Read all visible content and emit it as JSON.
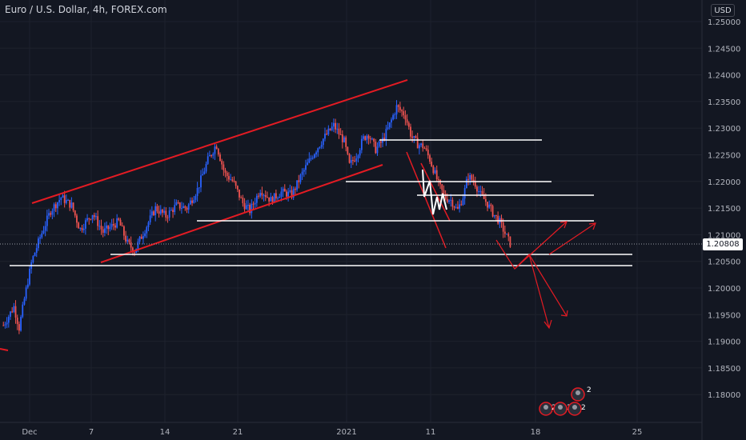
{
  "header": {
    "title": "Euro / U.S. Dollar, 4h, FOREX.com",
    "currency": "USD"
  },
  "last_price": "1.20808",
  "idea_icons": {
    "top_count": "2",
    "counts": [
      "2",
      "3",
      "2"
    ]
  },
  "chart_data": {
    "type": "candlestick",
    "title": "Euro / U.S. Dollar, 4h, FOREX.com",
    "y_ticks": [
      "1.25000",
      "1.24500",
      "1.24000",
      "1.23500",
      "1.23000",
      "1.22500",
      "1.22000",
      "1.21500",
      "1.21000",
      "1.20500",
      "1.20000",
      "1.19500",
      "1.19000",
      "1.18500",
      "1.18000"
    ],
    "y_tick_values": [
      1.25,
      1.245,
      1.24,
      1.235,
      1.23,
      1.225,
      1.22,
      1.215,
      1.21,
      1.205,
      1.2,
      1.195,
      1.19,
      1.185,
      1.18
    ],
    "x_ticks": [
      "Dec",
      "7",
      "14",
      "21",
      "2021",
      "11",
      "18",
      "25"
    ],
    "last_price": 1.20808,
    "colors": {
      "up": "#2962ff",
      "down": "#ef5350",
      "drawing": "#e31b23",
      "levels": "#ffffff",
      "background": "#131722"
    },
    "price_path": [
      {
        "d": -2.5,
        "p": 1.193
      },
      {
        "d": -1.5,
        "p": 1.1965
      },
      {
        "d": -1.0,
        "p": 1.1925
      },
      {
        "d": -0.4,
        "p": 1.199
      },
      {
        "d": 0.2,
        "p": 1.205
      },
      {
        "d": 1.0,
        "p": 1.2095
      },
      {
        "d": 2.0,
        "p": 1.2145
      },
      {
        "d": 3.0,
        "p": 1.217
      },
      {
        "d": 4.0,
        "p": 1.2155
      },
      {
        "d": 4.8,
        "p": 1.211
      },
      {
        "d": 6.0,
        "p": 1.214
      },
      {
        "d": 7.0,
        "p": 1.2105
      },
      {
        "d": 8.5,
        "p": 1.2125
      },
      {
        "d": 9.3,
        "p": 1.2085
      },
      {
        "d": 10.0,
        "p": 1.207
      },
      {
        "d": 11.0,
        "p": 1.211
      },
      {
        "d": 12.0,
        "p": 1.215
      },
      {
        "d": 13.0,
        "p": 1.2135
      },
      {
        "d": 14.0,
        "p": 1.2155
      },
      {
        "d": 15.0,
        "p": 1.215
      },
      {
        "d": 16.0,
        "p": 1.2185
      },
      {
        "d": 17.0,
        "p": 1.224
      },
      {
        "d": 17.8,
        "p": 1.227
      },
      {
        "d": 18.6,
        "p": 1.2215
      },
      {
        "d": 19.4,
        "p": 1.22
      },
      {
        "d": 20.3,
        "p": 1.216
      },
      {
        "d": 21.0,
        "p": 1.2145
      },
      {
        "d": 22.0,
        "p": 1.2185
      },
      {
        "d": 23.0,
        "p": 1.2165
      },
      {
        "d": 24.0,
        "p": 1.218
      },
      {
        "d": 25.0,
        "p": 1.2175
      },
      {
        "d": 26.0,
        "p": 1.2215
      },
      {
        "d": 27.0,
        "p": 1.225
      },
      {
        "d": 28.0,
        "p": 1.228
      },
      {
        "d": 29.0,
        "p": 1.2305
      },
      {
        "d": 30.0,
        "p": 1.2275
      },
      {
        "d": 30.5,
        "p": 1.223
      },
      {
        "d": 31.2,
        "p": 1.225
      },
      {
        "d": 31.8,
        "p": 1.228
      },
      {
        "d": 32.3,
        "p": 1.229
      },
      {
        "d": 33.0,
        "p": 1.226
      },
      {
        "d": 33.6,
        "p": 1.2275
      },
      {
        "d": 34.2,
        "p": 1.23
      },
      {
        "d": 35.0,
        "p": 1.234
      },
      {
        "d": 35.8,
        "p": 1.2325
      },
      {
        "d": 36.4,
        "p": 1.2285
      },
      {
        "d": 37.0,
        "p": 1.227
      },
      {
        "d": 37.6,
        "p": 1.2265
      },
      {
        "d": 38.2,
        "p": 1.224
      },
      {
        "d": 39.0,
        "p": 1.2195
      },
      {
        "d": 39.6,
        "p": 1.217
      },
      {
        "d": 40.2,
        "p": 1.2165
      },
      {
        "d": 40.8,
        "p": 1.2145
      },
      {
        "d": 41.4,
        "p": 1.2175
      },
      {
        "d": 41.8,
        "p": 1.221
      },
      {
        "d": 42.4,
        "p": 1.22
      },
      {
        "d": 43.0,
        "p": 1.2175
      },
      {
        "d": 43.6,
        "p": 1.216
      },
      {
        "d": 44.2,
        "p": 1.214
      },
      {
        "d": 44.8,
        "p": 1.2125
      },
      {
        "d": 45.4,
        "p": 1.21
      },
      {
        "d": 45.9,
        "p": 1.2081
      }
    ]
  }
}
